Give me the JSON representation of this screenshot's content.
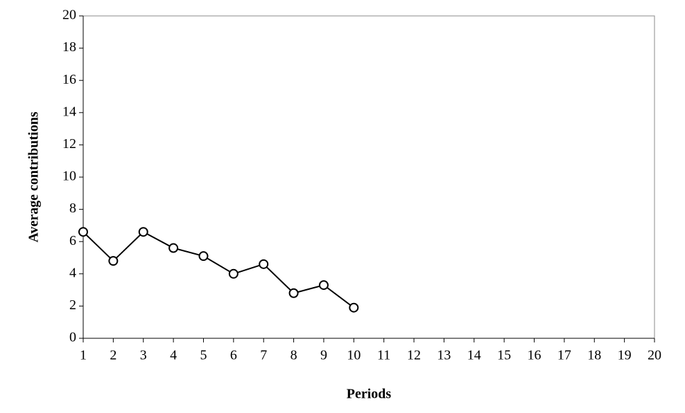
{
  "chart_data": {
    "type": "line",
    "x": [
      1,
      2,
      3,
      4,
      5,
      6,
      7,
      8,
      9,
      10
    ],
    "series": [
      {
        "name": "Average contributions",
        "color": "#000000",
        "values": [
          6.6,
          4.8,
          6.6,
          5.6,
          5.1,
          4.0,
          4.6,
          2.8,
          3.3,
          1.9
        ]
      }
    ],
    "xlabel": "Periods",
    "ylabel": "Average contributions",
    "xlim": [
      1,
      20
    ],
    "xticks": [
      1,
      2,
      3,
      4,
      5,
      6,
      7,
      8,
      9,
      10,
      11,
      12,
      13,
      14,
      15,
      16,
      17,
      18,
      19,
      20
    ],
    "ylim": [
      0,
      20
    ],
    "yticks": [
      0,
      2,
      4,
      6,
      8,
      10,
      12,
      14,
      16,
      18,
      20
    ],
    "grid": false
  }
}
